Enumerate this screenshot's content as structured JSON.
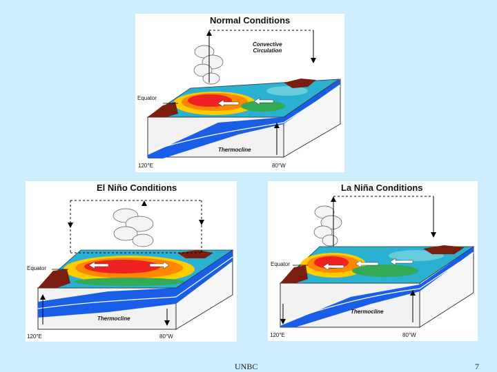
{
  "panels": {
    "normal": {
      "title": "Normal Conditions",
      "circulation": "Convective\nCirculation",
      "equator": "Equator",
      "thermocline": "Thermocline",
      "lon_west": "120°E",
      "lon_east": "80°W"
    },
    "nino": {
      "title": "El Niño Conditions",
      "equator": "Equator",
      "thermocline": "Thermocline",
      "lon_west": "120°E",
      "lon_east": "80°W"
    },
    "nina": {
      "title": "La Niña Conditions",
      "equator": "Equator",
      "thermocline": "Thermocline",
      "lon_west": "120°E",
      "lon_east": "80°W"
    }
  },
  "footer": {
    "org": "UNBC",
    "page": "7"
  },
  "colors": {
    "background": "#cceeff",
    "land": "#7a1e10",
    "warm": "#ee2222",
    "cool": "#33aa55",
    "water": "#1a5ee8"
  }
}
